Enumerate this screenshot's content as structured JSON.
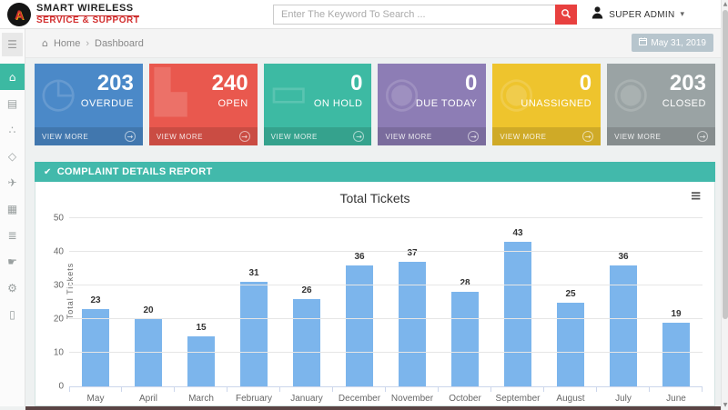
{
  "header": {
    "brand_line1": "SMART WIRELESS",
    "brand_line2": "SERVICE & SUPPORT",
    "logo_letter": "A",
    "search_placeholder": "Enter The Keyword To Search ...",
    "user_name": "SUPER ADMIN",
    "user_caret": "▾"
  },
  "breadcrumb": {
    "home_icon": "⌂",
    "home": "Home",
    "separator": "›",
    "current": "Dashboard",
    "date": "May 31, 2019"
  },
  "sidebar": {
    "toggle_icon": "menu-icon",
    "items": [
      {
        "icon": "home-icon",
        "active": true
      },
      {
        "icon": "list-icon",
        "active": false
      },
      {
        "icon": "share-nodes-icon",
        "active": false
      },
      {
        "icon": "tag-icon",
        "active": false
      },
      {
        "icon": "plane-icon",
        "active": false
      },
      {
        "icon": "table-icon",
        "active": false
      },
      {
        "icon": "database-icon",
        "active": false
      },
      {
        "icon": "hand-icon",
        "active": false
      },
      {
        "icon": "gear-icon",
        "active": false
      },
      {
        "icon": "file-icon",
        "active": false
      }
    ]
  },
  "stat_cards": [
    {
      "value": "203",
      "label": "OVERDUE",
      "view_more": "VIEW MORE",
      "color": "#4b89c8",
      "icon": "clock-icon"
    },
    {
      "value": "240",
      "label": "OPEN",
      "view_more": "VIEW MORE",
      "color": "#e9584e",
      "icon": "bar-chart-icon"
    },
    {
      "value": "0",
      "label": "ON HOLD",
      "view_more": "VIEW MORE",
      "color": "#3dbaa3",
      "icon": "monitor-icon"
    },
    {
      "value": "0",
      "label": "DUE TODAY",
      "view_more": "VIEW MORE",
      "color": "#8d7db5",
      "icon": "globe-icon"
    },
    {
      "value": "0",
      "label": "UNASSIGNED",
      "view_more": "VIEW MORE",
      "color": "#eec42d",
      "icon": "globe-icon"
    },
    {
      "value": "203",
      "label": "CLOSED",
      "view_more": "VIEW MORE",
      "color": "#9aa3a4",
      "icon": "globe-icon"
    }
  ],
  "section_header": {
    "check_icon": "✔",
    "title": "COMPLAINT DETAILS REPORT"
  },
  "chart_data": {
    "type": "bar",
    "title": "Total Tickets",
    "xlabel": "",
    "ylabel": "Total Tickets",
    "categories": [
      "May",
      "April",
      "March",
      "February",
      "January",
      "December",
      "November",
      "October",
      "September",
      "August",
      "July",
      "June"
    ],
    "values": [
      23,
      20,
      15,
      31,
      26,
      36,
      37,
      28,
      43,
      25,
      36,
      19
    ],
    "ylim": [
      0,
      50
    ],
    "yticks": [
      0,
      10,
      20,
      30,
      40,
      50
    ],
    "bar_color": "#7cb5ec",
    "grid": true,
    "legend": "none",
    "data_labels": true,
    "menu_icon": "≡"
  }
}
